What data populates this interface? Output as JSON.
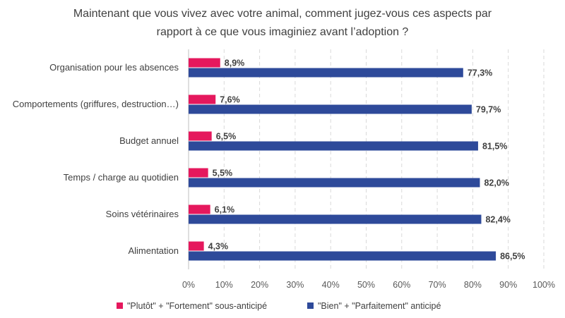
{
  "chart_data": {
    "type": "bar",
    "orientation": "horizontal",
    "title_lines": [
      "Maintenant que vous vivez avec votre animal, comment jugez-vous ces aspects par",
      "rapport à ce que vous imaginiez avant l’adoption ?"
    ],
    "categories": [
      "Organisation pour les absences",
      "Comportements (griffures, destruction…)",
      "Budget annuel",
      "Temps / charge au quotidien",
      "Soins vétérinaires",
      "Alimentation"
    ],
    "series": [
      {
        "name": "\"Plutôt\" + \"Fortement\" sous-anticipé",
        "color": "#e5185d",
        "values": [
          8.9,
          7.6,
          6.5,
          5.5,
          6.1,
          4.3
        ],
        "labels": [
          "8,9%",
          "7,6%",
          "6,5%",
          "5,5%",
          "6,1%",
          "4,3%"
        ]
      },
      {
        "name": "\"Bien\" + \"Parfaitement\" anticipé",
        "color": "#2e4a9a",
        "values": [
          77.3,
          79.7,
          81.5,
          82.0,
          82.4,
          86.5
        ],
        "labels": [
          "77,3%",
          "79,7%",
          "81,5%",
          "82,0%",
          "82,4%",
          "86,5%"
        ]
      }
    ],
    "xlim": [
      0,
      100
    ],
    "x_ticks": [
      "0%",
      "10%",
      "20%",
      "30%",
      "40%",
      "50%",
      "60%",
      "70%",
      "80%",
      "90%",
      "100%"
    ],
    "grid": true,
    "legend_position": "bottom"
  }
}
